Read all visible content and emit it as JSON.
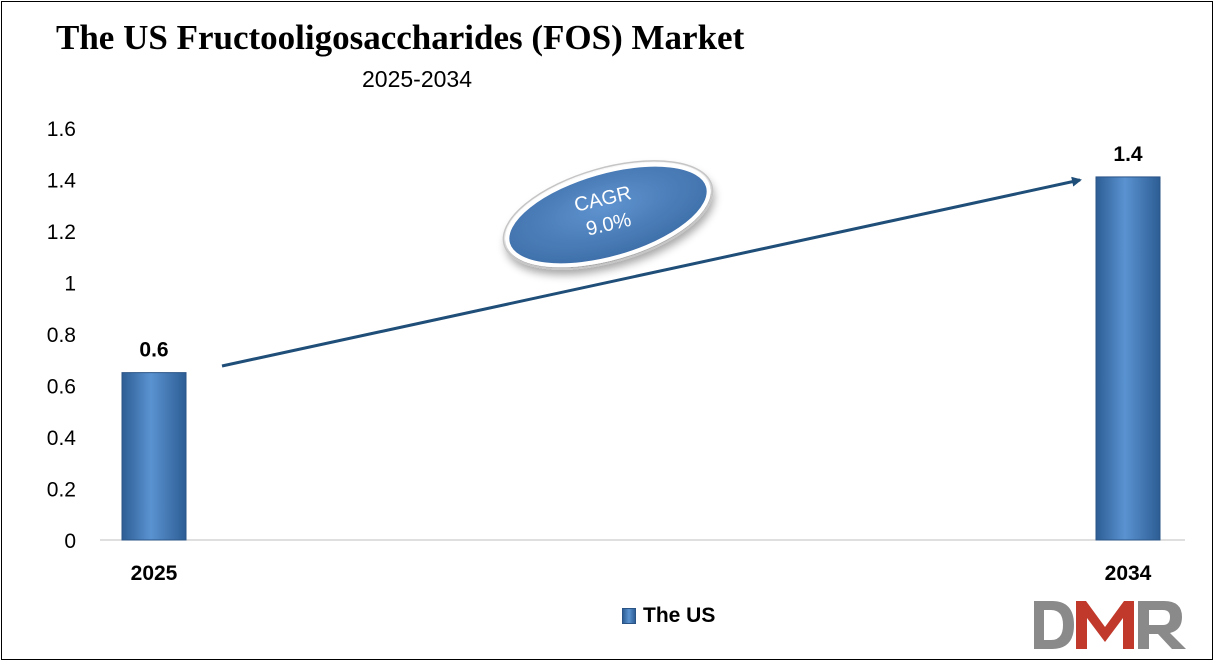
{
  "header": {
    "title": "The US Fructooligosaccharides (FOS) Market",
    "subtitle": "2025-2034"
  },
  "callout": {
    "line1": "CAGR",
    "line2": "9.0%"
  },
  "legend": {
    "label": "The US",
    "color": "#4a7fbf"
  },
  "logo": {
    "text": "DMR",
    "colors": [
      "#8a8a8a",
      "#c0392b"
    ]
  },
  "chart_data": {
    "type": "bar",
    "categories": [
      "2025",
      "2034"
    ],
    "series": [
      {
        "name": "The US",
        "values": [
          0.65,
          1.41
        ],
        "labels": [
          "0.6",
          "1.4"
        ]
      }
    ],
    "title": "The US Fructooligosaccharides (FOS) Market",
    "subtitle": "2025-2034",
    "ylim": [
      0,
      1.6
    ],
    "yticks": [
      0,
      0.2,
      0.4,
      0.6,
      0.8,
      1,
      1.2,
      1.4,
      1.6
    ],
    "ytick_labels": [
      "0",
      "0.2",
      "0.4",
      "0.6",
      "0.8",
      "1",
      "1.2",
      "1.4",
      "1.6"
    ],
    "grid": false,
    "legend_position": "bottom-center",
    "annotation": "CAGR 9.0%",
    "bar_color": "#4a7fbf"
  }
}
